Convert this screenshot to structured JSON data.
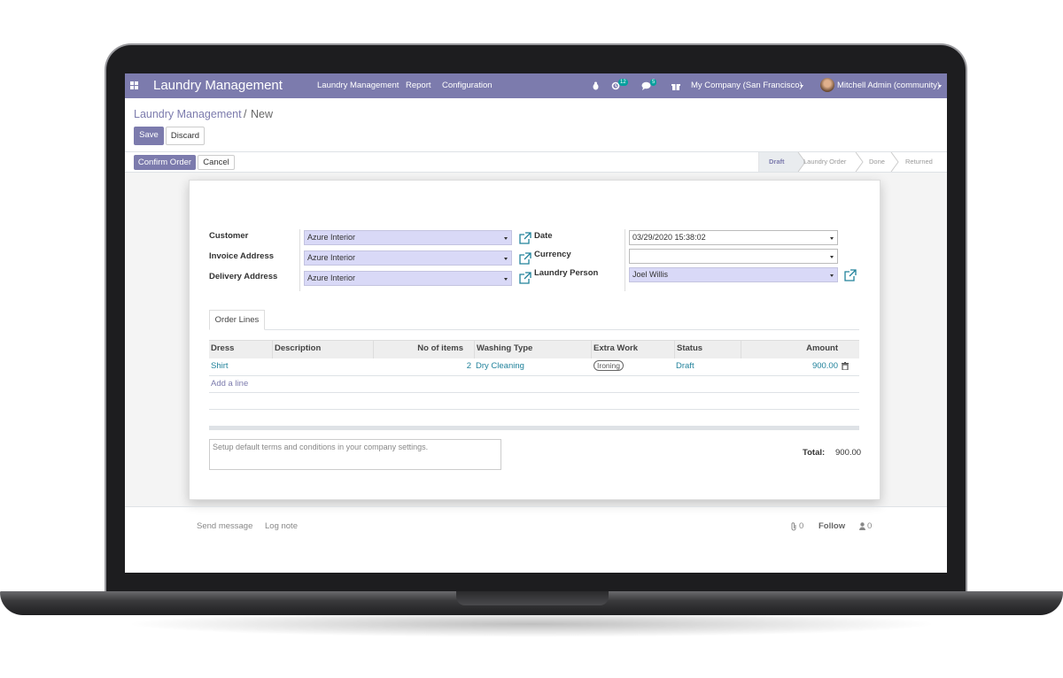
{
  "navbar": {
    "app_title": "Laundry Management",
    "menu": [
      "Laundry Management",
      "Report",
      "Configuration"
    ],
    "activity_count": 12,
    "message_count": 5,
    "company": "My Company (San Francisco)",
    "user": "Mitchell Admin (community)"
  },
  "breadcrumb": {
    "parent": "Laundry Management",
    "separator": "/",
    "current": "New"
  },
  "buttons": {
    "save": "Save",
    "discard": "Discard",
    "confirm": "Confirm Order",
    "cancel": "Cancel"
  },
  "statusbar": [
    "Draft",
    "Laundry Order",
    "Done",
    "Returned"
  ],
  "form": {
    "left": [
      {
        "label": "Customer",
        "value": "Azure Interior"
      },
      {
        "label": "Invoice Address",
        "value": "Azure Interior"
      },
      {
        "label": "Delivery Address",
        "value": "Azure Interior"
      }
    ],
    "right": [
      {
        "label": "Date",
        "value": "03/29/2020 15:38:02"
      },
      {
        "label": "Currency"
      },
      {
        "label": "Laundry Person",
        "value": "Joel Willis"
      }
    ]
  },
  "tab": "Order Lines",
  "table": {
    "columns": [
      "Dress",
      "Description",
      "No of items",
      "Washing Type",
      "Extra Work",
      "Status",
      "Amount"
    ],
    "rows": [
      {
        "dress": "Shirt",
        "no_of_items": 2,
        "washing_type": "Dry Cleaning",
        "extra_work": "Ironing",
        "status": "Draft",
        "amount": "900.00"
      }
    ],
    "add_line": "Add a line"
  },
  "terms_placeholder": "Setup default terms and conditions in your company settings.",
  "total": {
    "label": "Total:",
    "value": "900.00"
  },
  "chatter": {
    "send_message": "Send message",
    "log_note": "Log note",
    "attachments": 0,
    "follow": "Follow",
    "followers": 0
  }
}
